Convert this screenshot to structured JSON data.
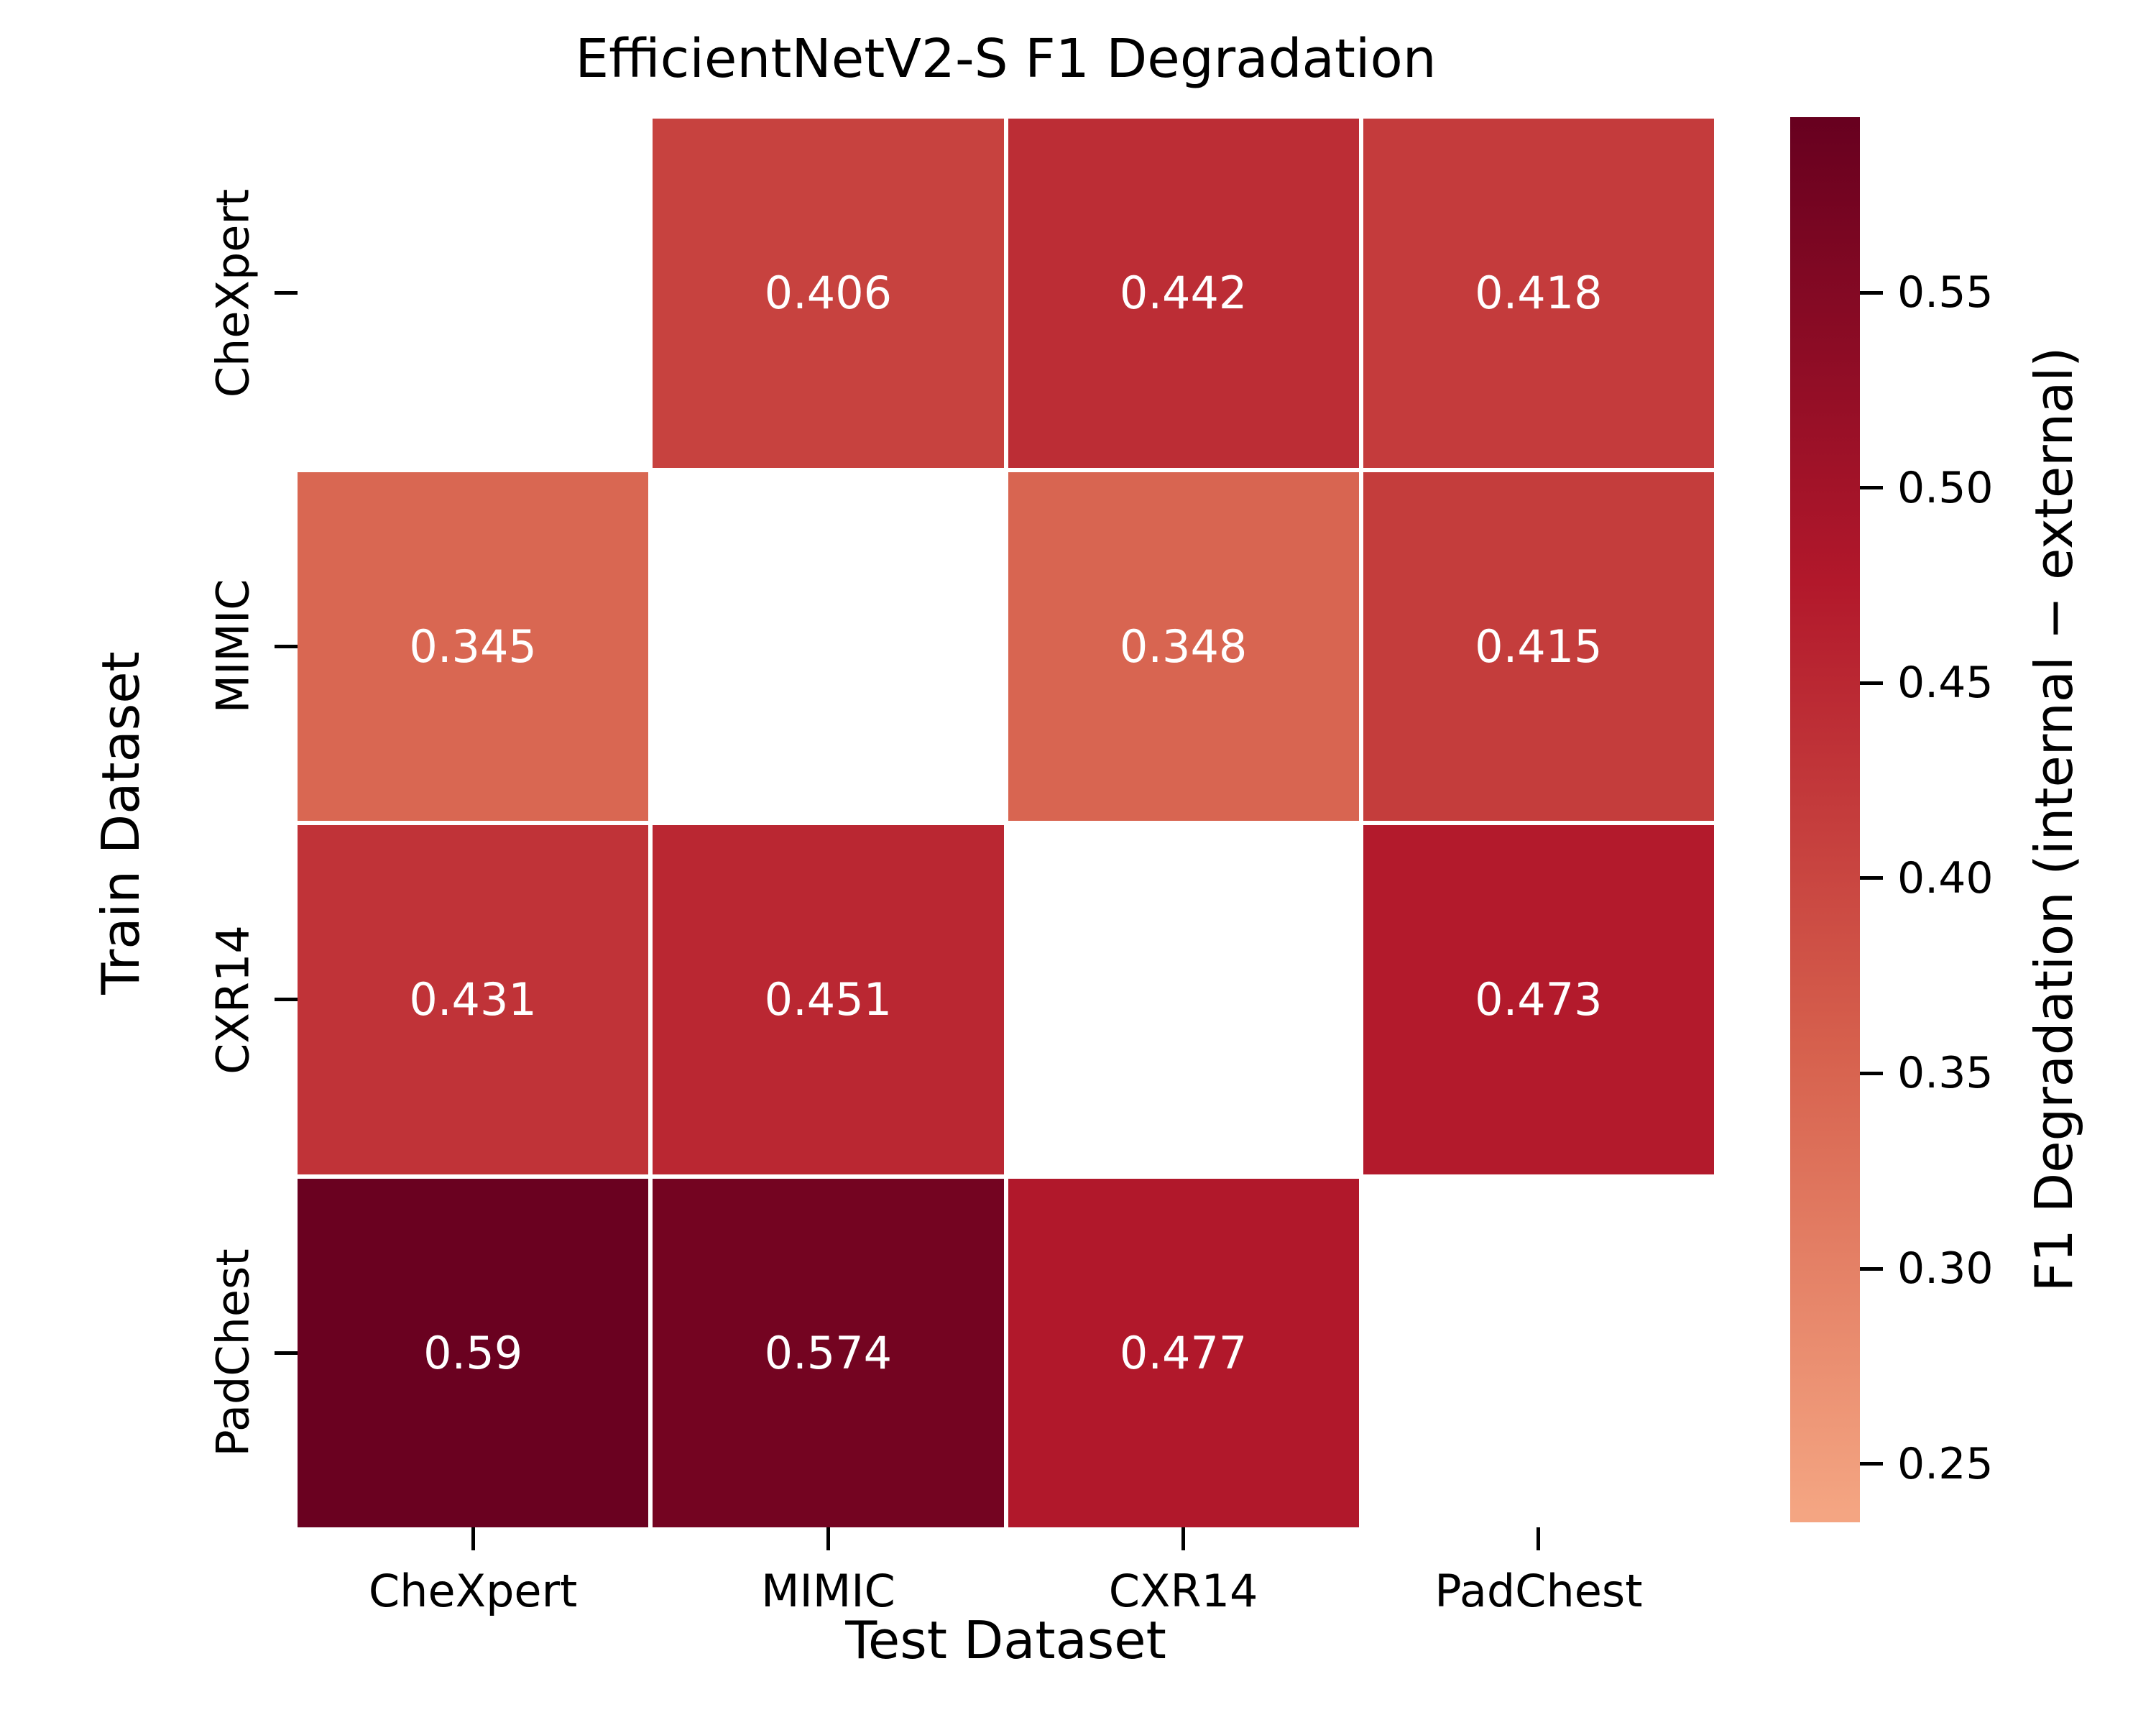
{
  "title": "EfficientNetV2-S F1 Degradation",
  "chart_data": {
    "type": "heatmap",
    "title": "EfficientNetV2-S F1 Degradation",
    "xlabel": "Test Dataset",
    "ylabel": "Train Dataset",
    "rows": [
      "CheXpert",
      "MIMIC",
      "CXR14",
      "PadChest"
    ],
    "columns": [
      "CheXpert",
      "MIMIC",
      "CXR14",
      "PadChest"
    ],
    "values": [
      [
        null,
        0.406,
        0.442,
        0.418
      ],
      [
        0.345,
        null,
        0.348,
        0.415
      ],
      [
        0.431,
        0.451,
        null,
        0.473
      ],
      [
        0.59,
        0.574,
        0.477,
        null
      ]
    ],
    "nan_cell_color": "#ffffff",
    "cell_text_color": "#ffffff",
    "grid_line_color": "#ffffff",
    "colorbar": {
      "label": "F1 Degradation (internal − external)",
      "ticks": [
        0.55,
        0.5,
        0.45,
        0.4,
        0.35,
        0.3,
        0.25
      ],
      "vmin": 0.235,
      "vmax": 0.595,
      "colormap_stops": [
        [
          0.238,
          "#f4a582"
        ],
        [
          0.357,
          "#d6604d"
        ],
        [
          0.476,
          "#b2182b"
        ],
        [
          0.595,
          "#67001f"
        ]
      ]
    }
  }
}
